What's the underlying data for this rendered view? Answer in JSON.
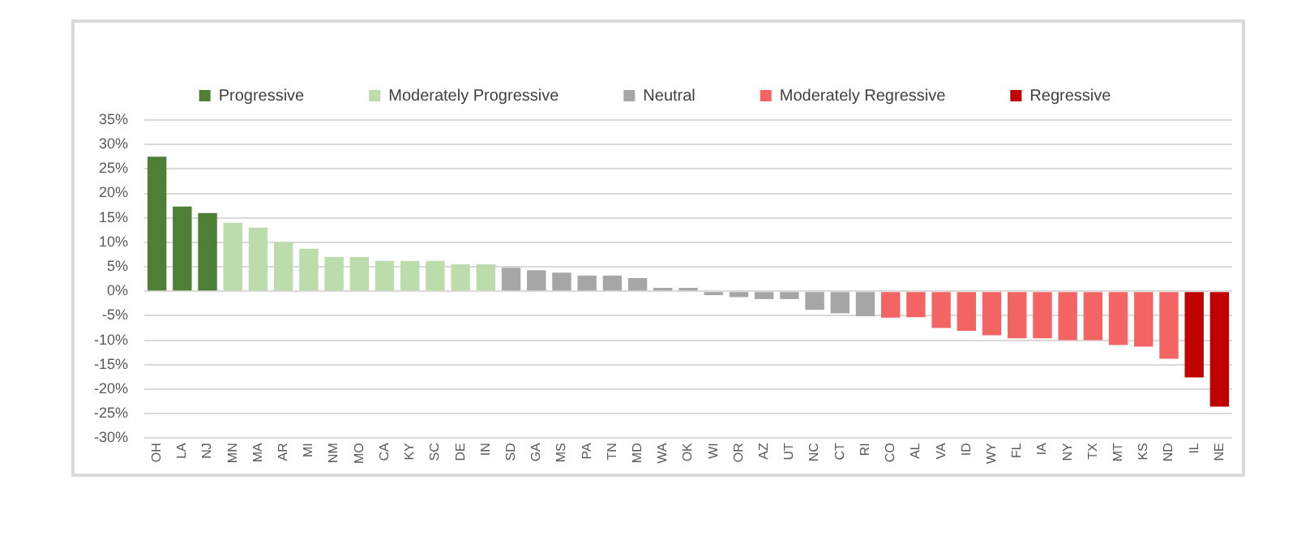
{
  "chart_data": {
    "type": "bar",
    "categories": [
      "OH",
      "LA",
      "NJ",
      "MN",
      "MA",
      "AR",
      "MI",
      "NM",
      "MO",
      "CA",
      "KY",
      "SC",
      "DE",
      "IN",
      "SD",
      "GA",
      "MS",
      "PA",
      "TN",
      "MD",
      "WA",
      "OK",
      "WI",
      "OR",
      "AZ",
      "UT",
      "NC",
      "CT",
      "RI",
      "CO",
      "AL",
      "VA",
      "ID",
      "WY",
      "FL",
      "IA",
      "NY",
      "TX",
      "MT",
      "KS",
      "ND",
      "IL",
      "NE"
    ],
    "series": [
      {
        "name": "Progressive",
        "color": "#4f7f34",
        "values": [
          27.5,
          17.3,
          16,
          null,
          null,
          null,
          null,
          null,
          null,
          null,
          null,
          null,
          null,
          null,
          null,
          null,
          null,
          null,
          null,
          null,
          null,
          null,
          null,
          null,
          null,
          null,
          null,
          null,
          null,
          null,
          null,
          null,
          null,
          null,
          null,
          null,
          null,
          null,
          null,
          null,
          null,
          null,
          null
        ]
      },
      {
        "name": "Moderately Progressive",
        "color": "#bddcab",
        "values": [
          null,
          null,
          null,
          14,
          13,
          10,
          8.7,
          7,
          7,
          6.2,
          6.2,
          6.2,
          5.5,
          5.5,
          null,
          null,
          null,
          null,
          null,
          null,
          null,
          null,
          null,
          null,
          null,
          null,
          null,
          null,
          null,
          null,
          null,
          null,
          null,
          null,
          null,
          null,
          null,
          null,
          null,
          null,
          null,
          null,
          null
        ]
      },
      {
        "name": "Neutral",
        "color": "#a6a6a6",
        "values": [
          null,
          null,
          null,
          null,
          null,
          null,
          null,
          null,
          null,
          null,
          null,
          null,
          null,
          null,
          4.8,
          4.3,
          3.8,
          3.2,
          3.2,
          2.7,
          0.7,
          0.7,
          -0.8,
          -1.2,
          -1.6,
          -1.6,
          -3.8,
          -4.5,
          -5.1,
          null,
          null,
          null,
          null,
          null,
          null,
          null,
          null,
          null,
          null,
          null,
          null,
          null,
          null
        ]
      },
      {
        "name": "Moderately Regressive",
        "color": "#f46464",
        "values": [
          null,
          null,
          null,
          null,
          null,
          null,
          null,
          null,
          null,
          null,
          null,
          null,
          null,
          null,
          null,
          null,
          null,
          null,
          null,
          null,
          null,
          null,
          null,
          null,
          null,
          null,
          null,
          null,
          null,
          -5.4,
          -5.3,
          -7.5,
          -8.1,
          -9,
          -9.6,
          -9.6,
          -10,
          -10,
          -11,
          -11.3,
          -13.8,
          null,
          null
        ]
      },
      {
        "name": "Regressive",
        "color": "#c00000",
        "values": [
          null,
          null,
          null,
          null,
          null,
          null,
          null,
          null,
          null,
          null,
          null,
          null,
          null,
          null,
          null,
          null,
          null,
          null,
          null,
          null,
          null,
          null,
          null,
          null,
          null,
          null,
          null,
          null,
          null,
          null,
          null,
          null,
          null,
          null,
          null,
          null,
          null,
          null,
          null,
          null,
          null,
          -17.6,
          -23.6
        ]
      }
    ],
    "ylim": [
      -30,
      35
    ],
    "yticks": [
      {
        "value": -30,
        "label": "-30%"
      },
      {
        "value": -25,
        "label": "-25%"
      },
      {
        "value": -20,
        "label": "-20%"
      },
      {
        "value": -15,
        "label": "-15%"
      },
      {
        "value": -10,
        "label": "-10%"
      },
      {
        "value": -5,
        "label": "-5%"
      },
      {
        "value": 0,
        "label": "0%"
      },
      {
        "value": 5,
        "label": "5%"
      },
      {
        "value": 10,
        "label": "10%"
      },
      {
        "value": 15,
        "label": "15%"
      },
      {
        "value": 20,
        "label": "20%"
      },
      {
        "value": 25,
        "label": "25%"
      },
      {
        "value": 30,
        "label": "30%"
      },
      {
        "value": 35,
        "label": "35%"
      }
    ],
    "grid": "y",
    "legend": "top"
  }
}
